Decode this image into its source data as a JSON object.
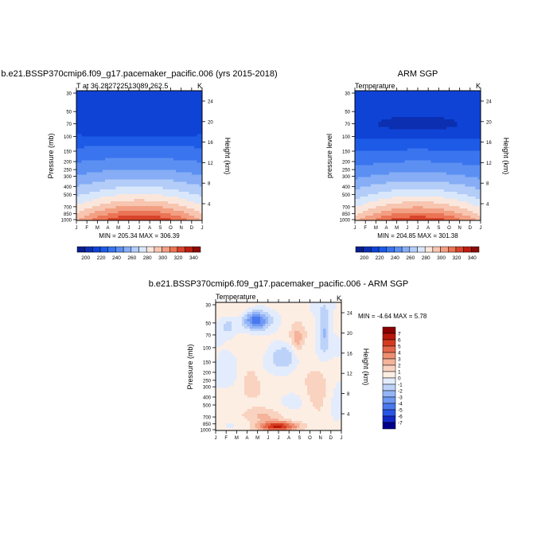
{
  "chart_data": [
    {
      "type": "heatmap",
      "title": "b.e21.BSSP370cmip6.f09_g17.pacemaker_pacific.006 (yrs 2015-2018)",
      "subtitle_left": "T at 36.282722513089,262.5",
      "units": "K",
      "ylabel": "Pressure (mb)",
      "ylabel_right": "Height (km)",
      "months": [
        "J",
        "F",
        "M",
        "A",
        "M",
        "J",
        "J",
        "A",
        "S",
        "O",
        "N",
        "D",
        "J"
      ],
      "pressure_ticks": [
        "30",
        "50",
        "70",
        "100",
        "150",
        "200",
        "250",
        "300",
        "400",
        "500",
        "700",
        "850",
        "1000"
      ],
      "height_ticks": [
        "24",
        "20",
        "16",
        "12",
        "8",
        "4"
      ],
      "stats": "MIN = 205.34  MAX = 306.39",
      "colorbar_labels": [
        "200",
        "220",
        "240",
        "260",
        "280",
        "300",
        "320",
        "340"
      ],
      "field_kind": "temperature",
      "field_offset": 0
    },
    {
      "type": "heatmap",
      "title": "ARM SGP",
      "subtitle_left": "Temperature",
      "units": "K",
      "ylabel": "pressure level",
      "ylabel_right": "Height (km)",
      "months": [
        "J",
        "F",
        "M",
        "A",
        "M",
        "J",
        "J",
        "A",
        "S",
        "O",
        "N",
        "D",
        "J"
      ],
      "pressure_ticks": [
        "30",
        "50",
        "70",
        "100",
        "150",
        "200",
        "250",
        "300",
        "400",
        "500",
        "700",
        "850",
        "1000"
      ],
      "height_ticks": [
        "24",
        "20",
        "16",
        "12",
        "8",
        "4"
      ],
      "stats": "MIN = 204.85  MAX = 301.38",
      "colorbar_labels": [
        "200",
        "220",
        "240",
        "260",
        "280",
        "300",
        "320",
        "340"
      ],
      "field_kind": "temperature",
      "field_offset": -3
    },
    {
      "type": "heatmap",
      "title": "b.e21.BSSP370cmip6.f09_g17.pacemaker_pacific.006 - ARM SGP",
      "subtitle_left": "Temperature",
      "units": "K",
      "ylabel": "Pressure (mb)",
      "ylabel_right": "Height (km)",
      "months": [
        "J",
        "F",
        "M",
        "A",
        "M",
        "J",
        "J",
        "A",
        "S",
        "O",
        "N",
        "D",
        "J"
      ],
      "pressure_ticks": [
        "30",
        "50",
        "70",
        "100",
        "150",
        "200",
        "250",
        "300",
        "400",
        "500",
        "700",
        "850",
        "1000"
      ],
      "height_ticks": [
        "24",
        "20",
        "16",
        "12",
        "8",
        "4"
      ],
      "stats": "MIN =  -4.64  MAX =   5.78",
      "colorbar_labels": [
        "7",
        "6",
        "5",
        "4",
        "3",
        "2",
        "1",
        "0",
        "-1",
        "-2",
        "-3",
        "-4",
        "-5",
        "-6",
        "-7"
      ],
      "field_kind": "difference"
    }
  ],
  "palettes": {
    "temperature": [
      "#0a1e8c",
      "#0b2fb0",
      "#0f43d6",
      "#1d5be6",
      "#3a74ee",
      "#5b8ff2",
      "#86adf5",
      "#b3cdf8",
      "#d9e7fb",
      "#fbe6dc",
      "#f7c5b0",
      "#f29f83",
      "#ea7455",
      "#d8442a",
      "#bb1e10",
      "#8c0a05"
    ],
    "temperature_bounds": [
      195,
      200,
      210,
      220,
      230,
      240,
      250,
      260,
      270,
      280,
      290,
      300,
      310,
      320,
      330,
      340,
      350
    ],
    "difference": [
      "#00008b",
      "#1028c8",
      "#2855e6",
      "#4a78ee",
      "#6f98f2",
      "#94b5f6",
      "#bdd2f9",
      "#e3ecfc",
      "#fdeee4",
      "#f9d3c0",
      "#f4b39a",
      "#ee8f72",
      "#e5674a",
      "#d63b20",
      "#b8180a",
      "#8b0000"
    ],
    "difference_bounds": [
      -8,
      -7,
      -6,
      -5,
      -4,
      -3,
      -2,
      -1,
      0,
      1,
      2,
      3,
      4,
      5,
      6,
      7,
      8
    ]
  }
}
